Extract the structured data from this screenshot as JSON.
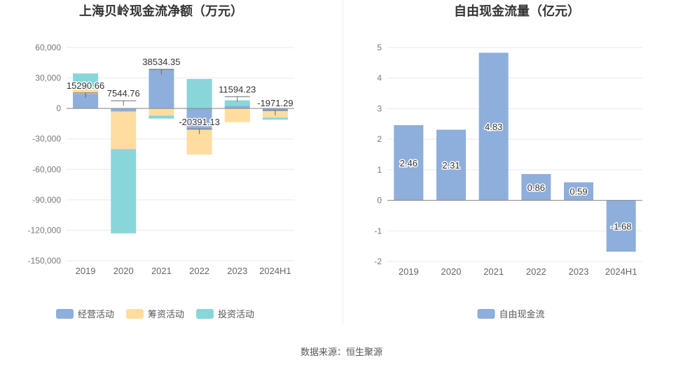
{
  "source_text": "数据来源：恒生聚源",
  "chart_data": [
    {
      "type": "bar",
      "stacked": true,
      "title": "上海贝岭现金流净额（万元）",
      "categories": [
        "2019",
        "2020",
        "2021",
        "2022",
        "2023",
        "2024H1"
      ],
      "ylim": [
        -150000,
        60000
      ],
      "yticks": [
        60000,
        30000,
        0,
        -30000,
        -60000,
        -90000,
        -120000,
        -150000
      ],
      "ytick_labels": [
        "60,000",
        "30,000",
        "0",
        "-30,000",
        "-60,000",
        "-90,000",
        "-120,000",
        "-150,000"
      ],
      "grid": true,
      "legend_position": "bottom",
      "series": [
        {
          "name": "经营活动",
          "color": "#8eaedc",
          "values": [
            14500,
            -3000,
            38534.35,
            -20391.13,
            2500,
            -2500
          ]
        },
        {
          "name": "筹资活动",
          "color": "#ffdda0",
          "values": [
            4500,
            -37000,
            -7000,
            -25000,
            -13500,
            -6500
          ]
        },
        {
          "name": "投资活动",
          "color": "#88d6d9",
          "values": [
            15500,
            -83000,
            -3000,
            29000,
            5500,
            -2000
          ]
        }
      ],
      "net_values": [
        15290.66,
        7544.76,
        38534.35,
        -20391.13,
        11594.23,
        -1971.29
      ],
      "net_labels": [
        "15290.66",
        "7544.76",
        "38534.35",
        "-20391.13",
        "11594.23",
        "-1971.29"
      ]
    },
    {
      "type": "bar",
      "title": "自由现金流量（亿元）",
      "categories": [
        "2019",
        "2020",
        "2021",
        "2022",
        "2023",
        "2024H1"
      ],
      "ylim": [
        -2,
        5
      ],
      "yticks": [
        5,
        4,
        3,
        2,
        1,
        0,
        -1,
        -2
      ],
      "ytick_labels": [
        "5",
        "4",
        "3",
        "2",
        "1",
        "0",
        "-1",
        "-2"
      ],
      "grid": true,
      "legend_position": "bottom",
      "series": [
        {
          "name": "自由现金流",
          "color": "#8eaedc",
          "values": [
            2.46,
            2.31,
            4.83,
            0.86,
            0.59,
            -1.68
          ]
        }
      ],
      "value_labels": [
        "2.46",
        "2.31",
        "4.83",
        "0.86",
        "0.59",
        "-1.68"
      ]
    }
  ]
}
